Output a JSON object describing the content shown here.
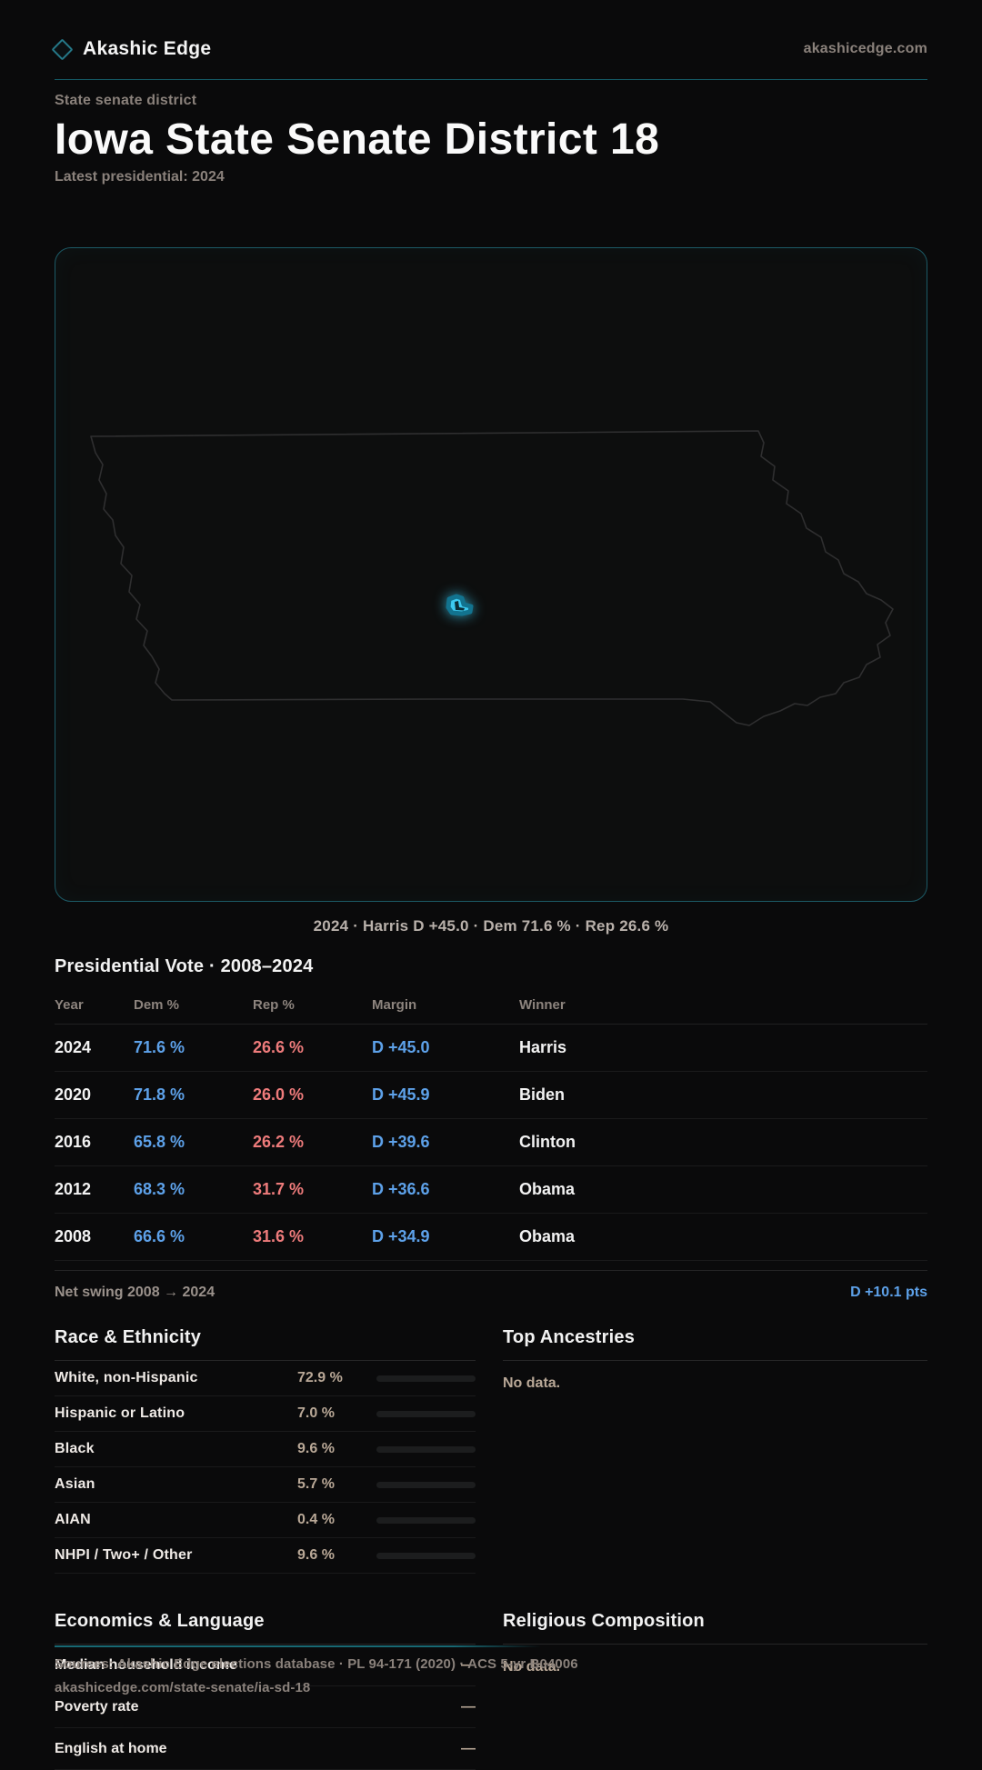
{
  "brand": {
    "name": "Akashic Edge",
    "domain": "akashicedge.com"
  },
  "hero": {
    "eyebrow": "State senate district",
    "title": "Iowa State Senate District 18",
    "subtitle": "Latest presidential: 2024"
  },
  "map": {
    "caption": "2024 · Harris D +45.0 · Dem 71.6 % · Rep 26.6 %",
    "state_outline": "iowa",
    "outline_color": "#2f2f30",
    "highlight_color": "#3cc9ef"
  },
  "vote": {
    "title": "Presidential Vote · 2008–2024",
    "columns": [
      "Year",
      "Dem %",
      "Rep %",
      "Margin",
      "Winner"
    ],
    "rows": [
      {
        "year": "2024",
        "dem": "71.6 %",
        "rep": "26.6 %",
        "margin": "D +45.0",
        "winner": "Harris"
      },
      {
        "year": "2020",
        "dem": "71.8 %",
        "rep": "26.0 %",
        "margin": "D +45.9",
        "winner": "Biden"
      },
      {
        "year": "2016",
        "dem": "65.8 %",
        "rep": "26.2 %",
        "margin": "D +39.6",
        "winner": "Clinton"
      },
      {
        "year": "2012",
        "dem": "68.3 %",
        "rep": "31.7 %",
        "margin": "D +36.6",
        "winner": "Obama"
      },
      {
        "year": "2008",
        "dem": "66.6 %",
        "rep": "31.6 %",
        "margin": "D +34.9",
        "winner": "Obama"
      }
    ],
    "net_swing": {
      "label": "Net swing 2008 → 2024",
      "value": "D +10.1 pts"
    }
  },
  "race": {
    "title": "Race & Ethnicity",
    "rows": [
      {
        "label": "White, non-Hispanic",
        "value": "72.9 %",
        "pct": 72.9
      },
      {
        "label": "Hispanic or Latino",
        "value": "7.0 %",
        "pct": 7.0
      },
      {
        "label": "Black",
        "value": "9.6 %",
        "pct": 9.6
      },
      {
        "label": "Asian",
        "value": "5.7 %",
        "pct": 5.7
      },
      {
        "label": "AIAN",
        "value": "0.4 %",
        "pct": 0.4
      },
      {
        "label": "NHPI / Two+ / Other",
        "value": "9.6 %",
        "pct": 9.6
      }
    ]
  },
  "ancestries": {
    "title": "Top Ancestries",
    "empty": "No data."
  },
  "economics": {
    "title": "Economics & Language",
    "rows": [
      {
        "label": "Median household income",
        "value": "—"
      },
      {
        "label": "Poverty rate",
        "value": "—"
      },
      {
        "label": "English at home",
        "value": "—"
      }
    ]
  },
  "religion": {
    "title": "Religious Composition",
    "empty": "No data."
  },
  "footer": {
    "line1": "Sources: Akashic Edge elections database · PL 94-171 (2020) · ACS 5-yr B04006",
    "line2": "akashicedge.com/state-senate/ia-sd-18"
  },
  "colors": {
    "accent_teal": "#145a66",
    "dem_blue": "#5da1e9",
    "rep_red": "#ee7b7b",
    "highlight_cyan": "#3cc9ef",
    "value_beige": "#b9a897"
  }
}
